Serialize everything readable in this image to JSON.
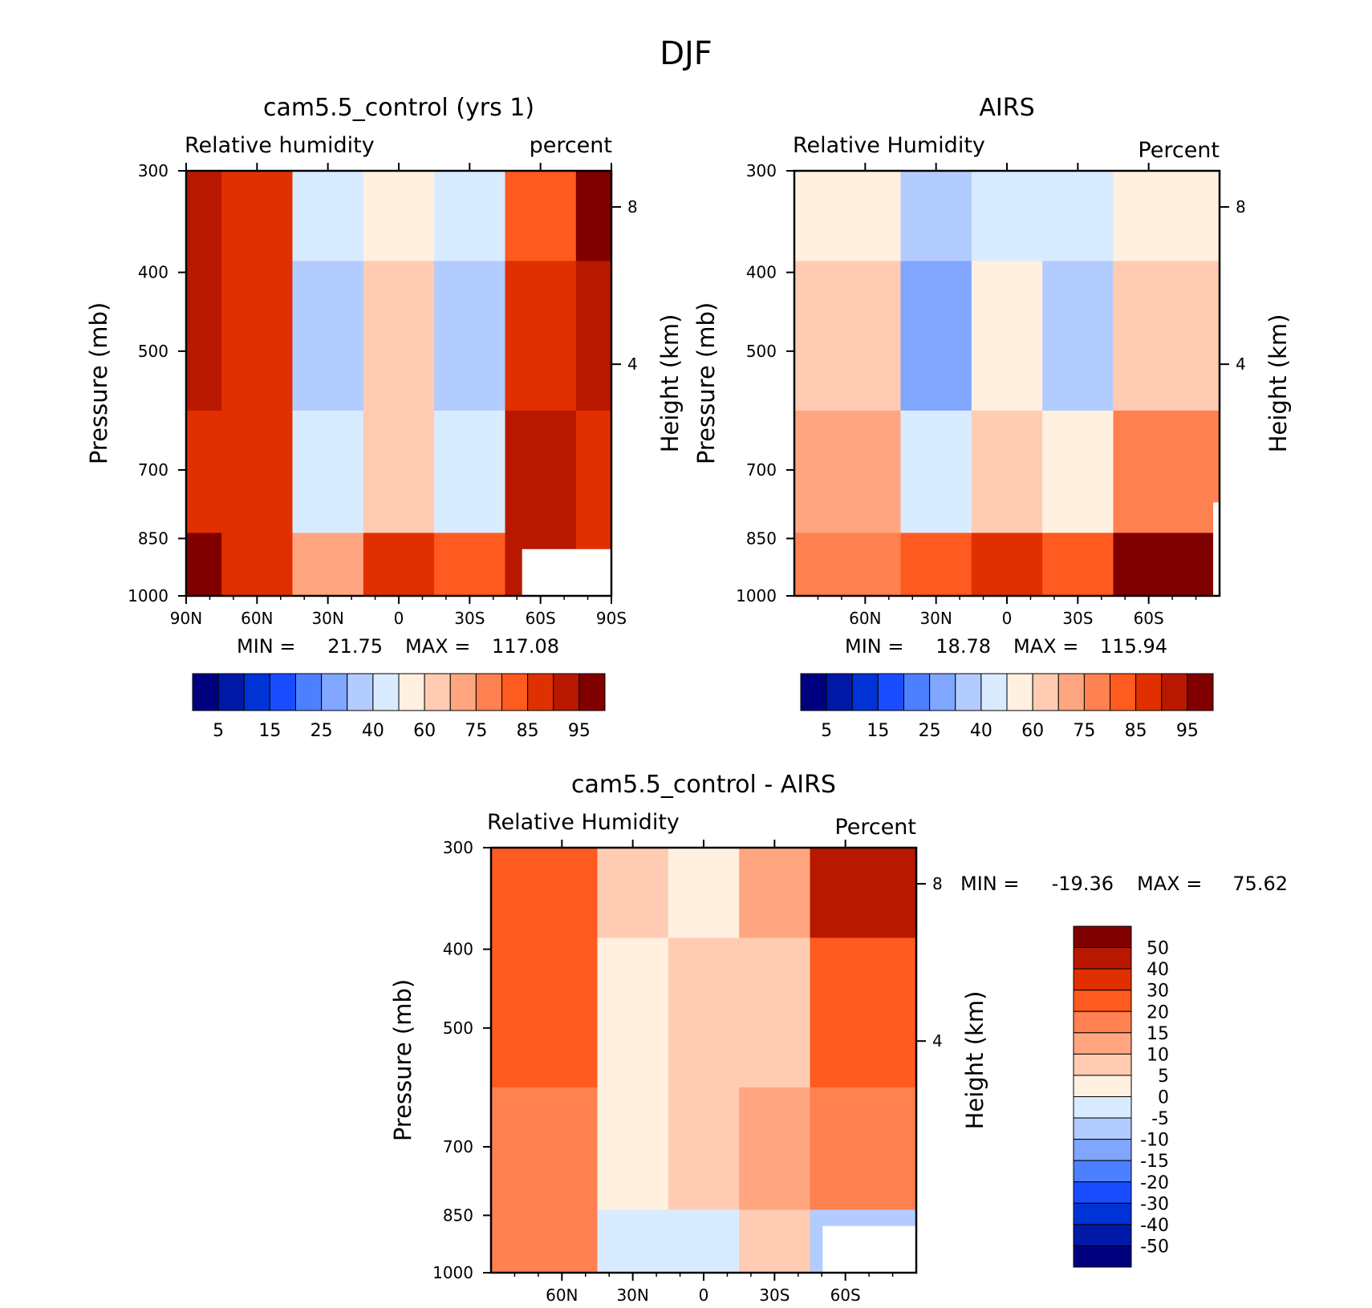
{
  "figure_title": "DJF",
  "colors": {
    "rh_scale": [
      "#00007f",
      "#0019a6",
      "#0033d6",
      "#1a4dff",
      "#4d80ff",
      "#80a6ff",
      "#b3ccff",
      "#d9ebff",
      "#fff0e0",
      "#ffccb3",
      "#ffa680",
      "#ff8050",
      "#ff5a1f",
      "#e03000",
      "#b81800",
      "#800000"
    ],
    "diff_scale": [
      "#00007f",
      "#0019a6",
      "#0033d6",
      "#1a4dff",
      "#4d80ff",
      "#80a6ff",
      "#b3ccff",
      "#d9ebff",
      "#fff0e0",
      "#ffccb3",
      "#ffa680",
      "#ff8050",
      "#ff5a1f",
      "#e03000",
      "#b81800",
      "#800000"
    ]
  },
  "chart_data": [
    {
      "type": "heatmap",
      "title": "cam5.5_control (yrs 1)",
      "left_string": "Relative humidity",
      "right_string": "percent",
      "ylabel": "Pressure (mb)",
      "ylabel_right": "Height (km)",
      "ylim": [
        1000,
        300
      ],
      "y_scale": "log",
      "y_ticks": [
        300,
        400,
        500,
        700,
        850,
        1000
      ],
      "right_ticks": [
        "8",
        "4"
      ],
      "x_ticks": [
        "90N",
        "60N",
        "30N",
        "0",
        "30S",
        "60S",
        "90S"
      ],
      "min_label": "MIN =",
      "min_value": "21.75",
      "max_label": "MAX =",
      "max_value": "117.08",
      "colorbar_labels": [
        "5",
        "15",
        "25",
        "40",
        "60",
        "75",
        "85",
        "95"
      ],
      "columns": [
        {
          "lat": "90N",
          "values": [
            92,
            90,
            88,
            95
          ]
        },
        {
          "lat": "60N",
          "values": [
            87,
            86,
            85,
            88
          ]
        },
        {
          "lat": "30N",
          "values": [
            45,
            32,
            40,
            70
          ]
        },
        {
          "lat": "0",
          "values": [
            55,
            60,
            62,
            88
          ]
        },
        {
          "lat": "30S",
          "values": [
            48,
            38,
            45,
            80
          ]
        },
        {
          "lat": "60S",
          "values": [
            80,
            85,
            90,
            92
          ]
        },
        {
          "lat": "90S",
          "values": [
            97,
            90,
            88,
            85
          ]
        }
      ]
    },
    {
      "type": "heatmap",
      "title": "AIRS",
      "left_string": "Relative Humidity",
      "right_string": "Percent",
      "ylabel": "Pressure (mb)",
      "ylabel_right": "Height (km)",
      "ylim": [
        1000,
        300
      ],
      "y_scale": "log",
      "y_ticks": [
        300,
        400,
        500,
        700,
        850,
        1000
      ],
      "right_ticks": [
        "8",
        "4"
      ],
      "x_ticks": [
        "60N",
        "30N",
        "0",
        "30S",
        "60S"
      ],
      "min_label": "MIN =",
      "min_value": "18.78",
      "max_label": "MAX =",
      "max_value": "115.94",
      "colorbar_labels": [
        "5",
        "15",
        "25",
        "40",
        "60",
        "75",
        "85",
        "95"
      ],
      "columns": [
        {
          "lat": "60N",
          "values": [
            58,
            62,
            68,
            75
          ]
        },
        {
          "lat": "30N",
          "values": [
            32,
            25,
            45,
            80
          ]
        },
        {
          "lat": "0",
          "values": [
            45,
            50,
            60,
            85
          ]
        },
        {
          "lat": "30S",
          "values": [
            40,
            35,
            52,
            80
          ]
        },
        {
          "lat": "60S",
          "values": [
            55,
            62,
            78,
            95
          ]
        }
      ]
    },
    {
      "type": "heatmap",
      "title": "cam5.5_control - AIRS",
      "left_string": "Relative Humidity",
      "right_string": "Percent",
      "ylabel": "Pressure (mb)",
      "ylabel_right": "Height (km)",
      "ylim": [
        1000,
        300
      ],
      "y_scale": "log",
      "y_ticks": [
        300,
        400,
        500,
        700,
        850,
        1000
      ],
      "right_ticks": [
        "8",
        "4"
      ],
      "x_ticks": [
        "60N",
        "30N",
        "0",
        "30S",
        "60S"
      ],
      "min_label": "MIN =",
      "min_value": "-19.36",
      "max_label": "MAX =",
      "max_value": "75.62",
      "colorbar_labels": [
        "50",
        "40",
        "30",
        "20",
        "15",
        "10",
        "5",
        "0",
        "-5",
        "-10",
        "-15",
        "-20",
        "-30",
        "-40",
        "-50"
      ],
      "columns": [
        {
          "lat": "60N",
          "values": [
            28,
            20,
            18,
            15
          ]
        },
        {
          "lat": "30N",
          "values": [
            8,
            4,
            3,
            -5
          ]
        },
        {
          "lat": "0",
          "values": [
            3,
            8,
            5,
            -3
          ]
        },
        {
          "lat": "30S",
          "values": [
            10,
            8,
            12,
            5
          ]
        },
        {
          "lat": "60S",
          "values": [
            40,
            20,
            15,
            -10
          ]
        }
      ]
    }
  ]
}
